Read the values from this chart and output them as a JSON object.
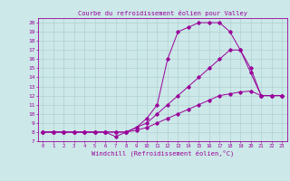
{
  "title": "Courbe du refroidissement éolien pour Valley",
  "xlabel": "Windchill (Refroidissement éolien,°C)",
  "bg_color": "#cce8e8",
  "line_color": "#990099",
  "xlim": [
    -0.5,
    23.5
  ],
  "ylim": [
    7,
    20.5
  ],
  "xticks": [
    0,
    1,
    2,
    3,
    4,
    5,
    6,
    7,
    8,
    9,
    10,
    11,
    12,
    13,
    14,
    15,
    16,
    17,
    18,
    19,
    20,
    21,
    22,
    23
  ],
  "yticks": [
    7,
    8,
    9,
    10,
    11,
    12,
    13,
    14,
    15,
    16,
    17,
    18,
    19,
    20
  ],
  "series": [
    {
      "x": [
        0,
        1,
        2,
        3,
        4,
        5,
        6,
        7,
        8,
        9,
        10,
        11,
        12,
        13,
        14,
        15,
        16,
        17,
        18,
        19,
        20,
        21,
        22,
        23
      ],
      "y": [
        8,
        8,
        8,
        8,
        8,
        8,
        8,
        7.5,
        8,
        8.5,
        9.5,
        11,
        16,
        19,
        19.5,
        20,
        20,
        20,
        19,
        17,
        14.5,
        12,
        12,
        12
      ]
    },
    {
      "x": [
        0,
        1,
        2,
        3,
        4,
        5,
        6,
        7,
        8,
        9,
        10,
        11,
        12,
        13,
        14,
        15,
        16,
        17,
        18,
        19,
        20,
        21,
        22,
        23
      ],
      "y": [
        8,
        8,
        8,
        8,
        8,
        8,
        8,
        8,
        8,
        8.5,
        9,
        10,
        11,
        12,
        13,
        14,
        15,
        16,
        17,
        17,
        15,
        12,
        12,
        12
      ]
    },
    {
      "x": [
        0,
        1,
        2,
        3,
        4,
        5,
        6,
        7,
        8,
        9,
        10,
        11,
        12,
        13,
        14,
        15,
        16,
        17,
        18,
        19,
        20,
        21,
        22,
        23
      ],
      "y": [
        8,
        8,
        8,
        8,
        8,
        8,
        8,
        8,
        8,
        8.2,
        8.5,
        9,
        9.5,
        10,
        10.5,
        11,
        11.5,
        12,
        12.2,
        12.4,
        12.5,
        12,
        12,
        12
      ]
    }
  ]
}
